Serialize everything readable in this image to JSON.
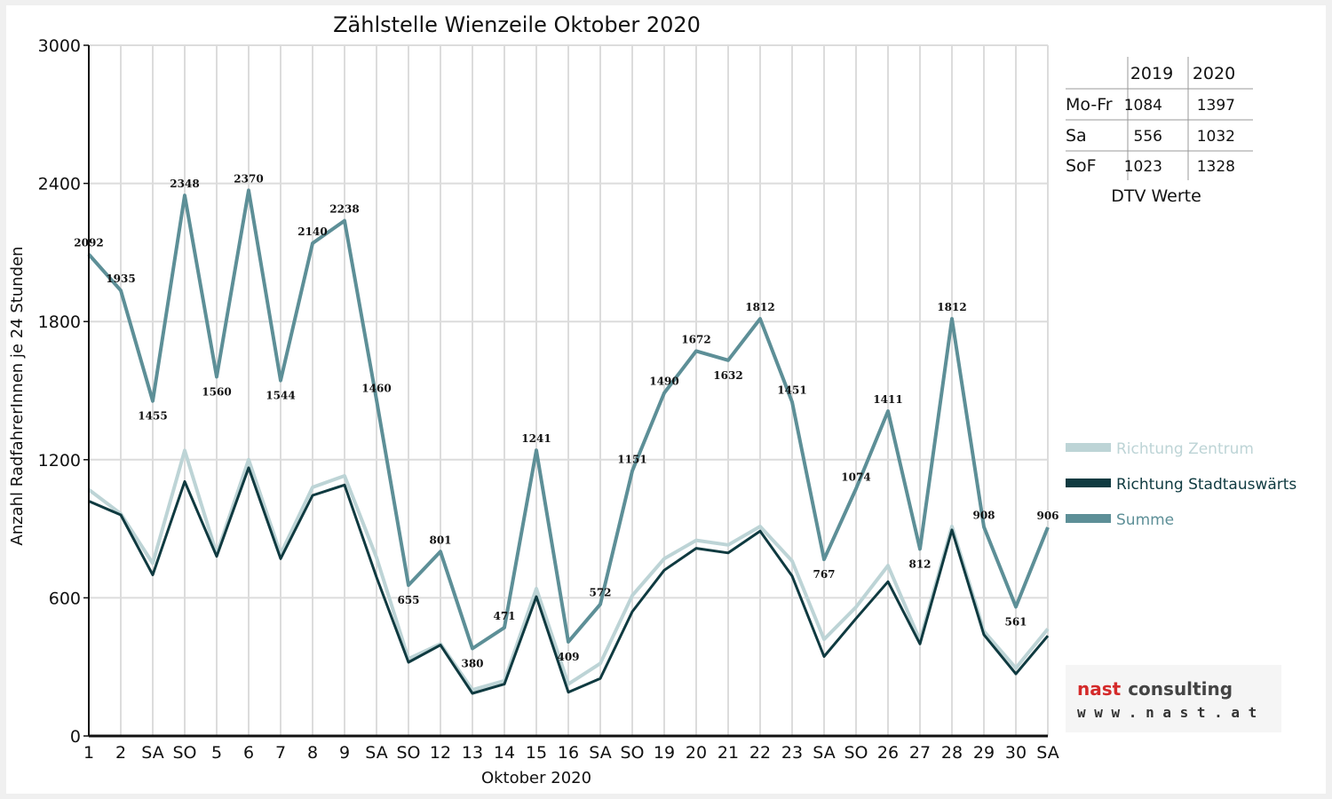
{
  "chart_data": {
    "type": "line",
    "title": "Zählstelle Wienzeile Oktober 2020",
    "xlabel": "Oktober 2020",
    "ylabel": "Anzahl RadfahrerInnen je 24 Stunden",
    "ylim": [
      0,
      3000
    ],
    "yticks": [
      "0",
      "600",
      "1200",
      "1800",
      "2400",
      "3000"
    ],
    "grid": true,
    "legend_position": "right",
    "categories": [
      "1",
      "2",
      "SA",
      "SO",
      "5",
      "6",
      "7",
      "8",
      "9",
      "SA",
      "SO",
      "12",
      "13",
      "14",
      "15",
      "16",
      "SA",
      "SO",
      "19",
      "20",
      "21",
      "22",
      "23",
      "SA",
      "SO",
      "26",
      "27",
      "28",
      "29",
      "30",
      "SA"
    ],
    "category_colors": [
      "#111111",
      "#111111",
      "#111111",
      "#e00000",
      "#111111",
      "#111111",
      "#111111",
      "#111111",
      "#111111",
      "#111111",
      "#e00000",
      "#111111",
      "#111111",
      "#111111",
      "#111111",
      "#111111",
      "#111111",
      "#e00000",
      "#111111",
      "#111111",
      "#111111",
      "#111111",
      "#111111",
      "#111111",
      "#e00000",
      "#e00000",
      "#111111",
      "#111111",
      "#111111",
      "#111111",
      "#111111"
    ],
    "series": [
      {
        "name": "Richtung Zentrum",
        "color": "#bdd4d6",
        "values": [
          1070,
          965,
          750,
          1240,
          790,
          1200,
          790,
          1080,
          1130,
          775,
          335,
          400,
          200,
          240,
          640,
          225,
          315,
          610,
          770,
          850,
          830,
          910,
          760,
          420,
          560,
          740,
          415,
          910,
          455,
          295,
          465
        ]
      },
      {
        "name": "Richtung Stadtauswärts",
        "color": "#0f3a40",
        "values": [
          1020,
          960,
          700,
          1105,
          780,
          1165,
          770,
          1045,
          1090,
          690,
          320,
          395,
          185,
          225,
          605,
          190,
          250,
          540,
          720,
          815,
          795,
          890,
          695,
          345,
          510,
          670,
          400,
          895,
          440,
          270,
          435
        ]
      },
      {
        "name": "Summe",
        "color": "#5d8f97",
        "values": [
          2092,
          1935,
          1455,
          2348,
          1560,
          2370,
          1544,
          2140,
          2238,
          1460,
          655,
          801,
          380,
          471,
          1241,
          409,
          572,
          1151,
          1490,
          1672,
          1632,
          1812,
          1451,
          767,
          1074,
          1411,
          812,
          1812,
          908,
          561,
          906
        ],
        "labels": [
          "2092",
          "1935",
          "1455",
          "2348",
          "1560",
          "2370",
          "1544",
          "2140",
          "2238",
          "1460",
          "655",
          "801",
          "380",
          "471",
          "1241",
          "409",
          "572",
          "1151",
          "1490",
          "1672",
          "1632",
          "1812",
          "1451",
          "767",
          "1074",
          "1411",
          "812",
          "1812",
          "908",
          "561",
          "906"
        ]
      }
    ]
  },
  "dtv_table": {
    "caption": "DTV Werte",
    "headers": [
      "2019",
      "2020"
    ],
    "rows": [
      {
        "label": "Mo-Fr",
        "v2019": "1084",
        "v2020": "1397"
      },
      {
        "label": "Sa",
        "v2019": "556",
        "v2020": "1032"
      },
      {
        "label": "SoF",
        "v2019": "1023",
        "v2020": "1328"
      }
    ]
  },
  "logo": {
    "word1": "nast",
    "word2": "consulting",
    "url": "w w w . n a s t . a t",
    "color1": "#d42a2a",
    "color2": "#444444"
  }
}
